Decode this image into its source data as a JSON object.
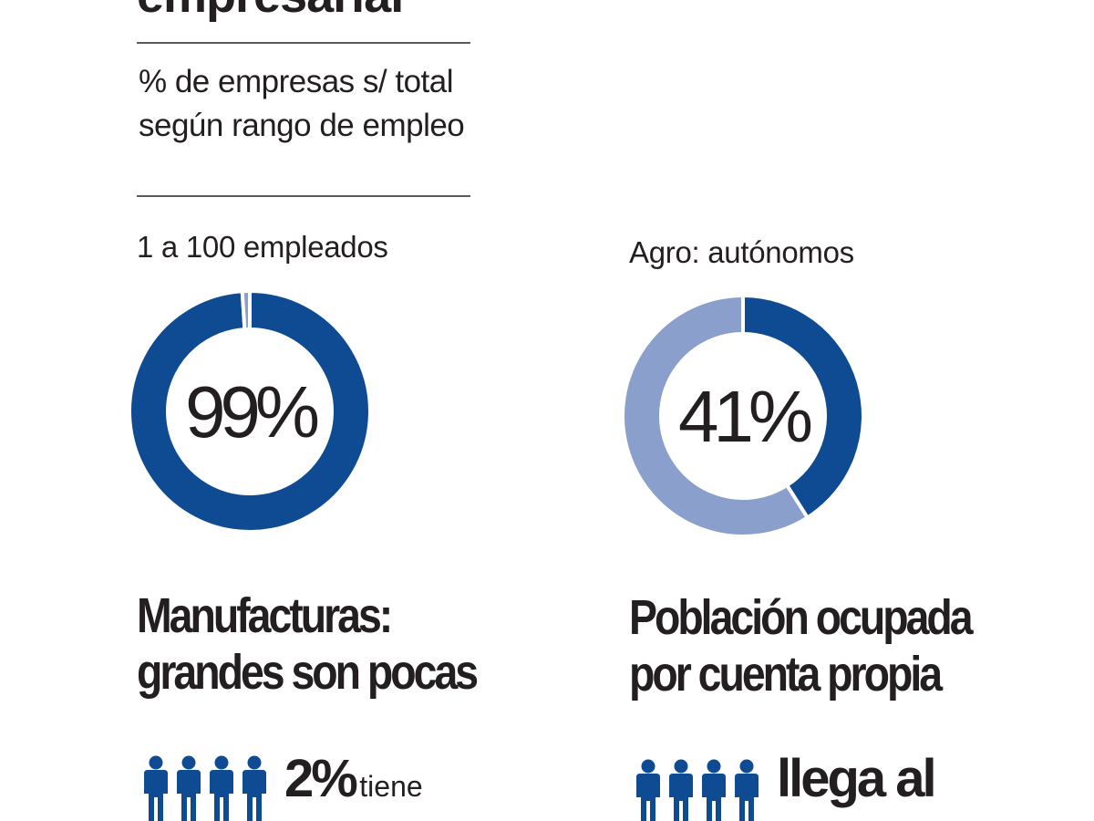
{
  "colors": {
    "dark_blue": "#0e4b92",
    "light_blue": "#8a9fcc",
    "text": "#231f20",
    "rule": "#5a5a5a"
  },
  "header": {
    "title_partial": "empresarial",
    "subtitle": "% de empresas  s/ total según rango de empleo"
  },
  "chart_data": [
    {
      "type": "pie",
      "label": "1 a 100 empleados",
      "center_text": "99%",
      "slices": [
        {
          "name": "",
          "value": 99,
          "color": "#0e4b92"
        },
        {
          "name": "",
          "value": 1,
          "color": "#8a9fcc"
        }
      ]
    },
    {
      "type": "pie",
      "label": "Agro: autónomos",
      "center_text": "41%",
      "slices": [
        {
          "name": "",
          "value": 41,
          "color": "#0e4b92"
        },
        {
          "name": "",
          "value": 59,
          "color": "#8a9fcc"
        }
      ]
    }
  ],
  "sections": {
    "left": {
      "headline_line1": "Manufacturas:",
      "headline_line2": "grandes son pocas",
      "stat_value": "2%",
      "stat_text": "tiene",
      "icon": "person-icon"
    },
    "right": {
      "headline_line1": "Población ocupada",
      "headline_line2": "por cuenta propia",
      "stat_text": "llega al",
      "icon": "person-icon"
    }
  }
}
